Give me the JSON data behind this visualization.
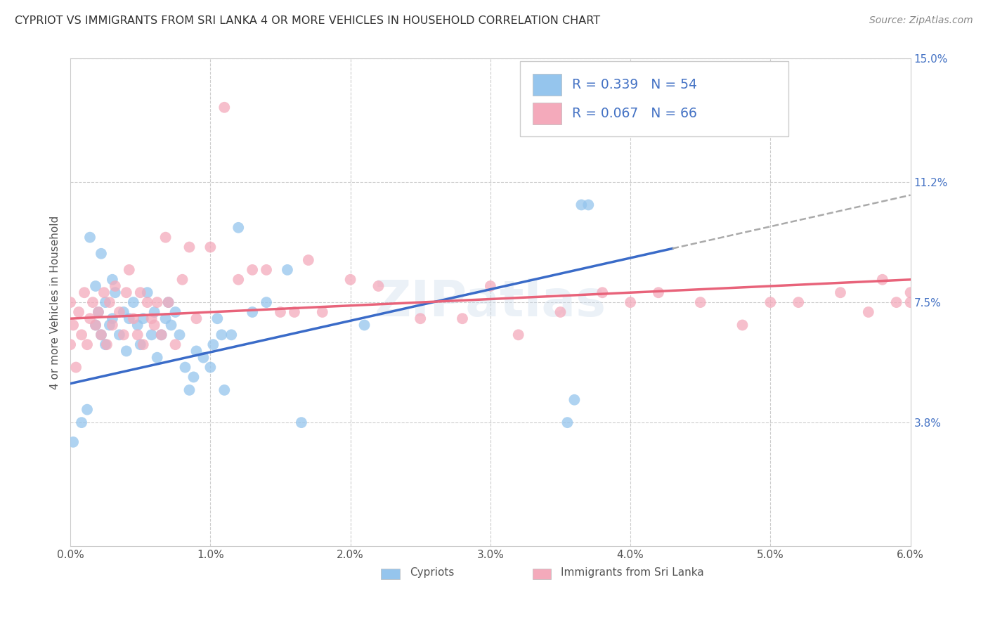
{
  "title": "CYPRIOT VS IMMIGRANTS FROM SRI LANKA 4 OR MORE VEHICLES IN HOUSEHOLD CORRELATION CHART",
  "source": "Source: ZipAtlas.com",
  "xlabel_ticks": [
    "0.0%",
    "1.0%",
    "2.0%",
    "3.0%",
    "4.0%",
    "5.0%",
    "6.0%"
  ],
  "xlabel_vals": [
    0.0,
    1.0,
    2.0,
    3.0,
    4.0,
    5.0,
    6.0
  ],
  "ylabel": "4 or more Vehicles in Household",
  "ylabel_right_ticks": [
    "3.8%",
    "7.5%",
    "11.2%",
    "15.0%"
  ],
  "ylabel_right_vals": [
    3.8,
    7.5,
    11.2,
    15.0
  ],
  "xmin": 0.0,
  "xmax": 6.0,
  "ymin": 0.0,
  "ymax": 15.0,
  "color_blue": "#95C5ED",
  "color_pink": "#F4AABB",
  "color_blue_line": "#3A6BC8",
  "color_pink_line": "#E8637A",
  "color_blue_text": "#4472C4",
  "color_title": "#333333",
  "color_source": "#888888",
  "color_grid": "#CCCCCC",
  "color_right_labels": "#4472C4",
  "watermark": "ZIPatlas",
  "blue_scatter_x": [
    0.02,
    0.08,
    0.12,
    0.14,
    0.18,
    0.18,
    0.2,
    0.22,
    0.22,
    0.25,
    0.25,
    0.28,
    0.3,
    0.3,
    0.32,
    0.35,
    0.38,
    0.4,
    0.42,
    0.45,
    0.48,
    0.5,
    0.52,
    0.55,
    0.58,
    0.6,
    0.62,
    0.65,
    0.68,
    0.7,
    0.72,
    0.75,
    0.78,
    0.82,
    0.85,
    0.88,
    0.9,
    0.95,
    1.0,
    1.02,
    1.05,
    1.08,
    1.1,
    1.15,
    1.2,
    1.3,
    1.4,
    1.55,
    1.65,
    2.1,
    3.55,
    3.6,
    3.65,
    3.7
  ],
  "blue_scatter_y": [
    3.2,
    3.8,
    4.2,
    9.5,
    6.8,
    8.0,
    7.2,
    6.5,
    9.0,
    6.2,
    7.5,
    6.8,
    7.0,
    8.2,
    7.8,
    6.5,
    7.2,
    6.0,
    7.0,
    7.5,
    6.8,
    6.2,
    7.0,
    7.8,
    6.5,
    7.2,
    5.8,
    6.5,
    7.0,
    7.5,
    6.8,
    7.2,
    6.5,
    5.5,
    4.8,
    5.2,
    6.0,
    5.8,
    5.5,
    6.2,
    7.0,
    6.5,
    4.8,
    6.5,
    9.8,
    7.2,
    7.5,
    8.5,
    3.8,
    6.8,
    3.8,
    4.5,
    10.5,
    10.5
  ],
  "pink_scatter_x": [
    0.0,
    0.0,
    0.02,
    0.04,
    0.06,
    0.08,
    0.1,
    0.12,
    0.14,
    0.16,
    0.18,
    0.2,
    0.22,
    0.24,
    0.26,
    0.28,
    0.3,
    0.32,
    0.35,
    0.38,
    0.4,
    0.42,
    0.45,
    0.48,
    0.5,
    0.52,
    0.55,
    0.58,
    0.6,
    0.62,
    0.65,
    0.68,
    0.7,
    0.75,
    0.8,
    0.85,
    0.9,
    1.0,
    1.1,
    1.2,
    1.3,
    1.4,
    1.5,
    1.6,
    1.7,
    1.8,
    2.0,
    2.2,
    2.5,
    2.8,
    3.0,
    3.2,
    3.5,
    3.8,
    4.0,
    4.2,
    4.5,
    4.8,
    5.0,
    5.2,
    5.5,
    5.7,
    5.8,
    5.9,
    6.0,
    6.0
  ],
  "pink_scatter_y": [
    6.2,
    7.5,
    6.8,
    5.5,
    7.2,
    6.5,
    7.8,
    6.2,
    7.0,
    7.5,
    6.8,
    7.2,
    6.5,
    7.8,
    6.2,
    7.5,
    6.8,
    8.0,
    7.2,
    6.5,
    7.8,
    8.5,
    7.0,
    6.5,
    7.8,
    6.2,
    7.5,
    7.0,
    6.8,
    7.5,
    6.5,
    9.5,
    7.5,
    6.2,
    8.2,
    9.2,
    7.0,
    9.2,
    13.5,
    8.2,
    8.5,
    8.5,
    7.2,
    7.2,
    8.8,
    7.2,
    8.2,
    8.0,
    7.0,
    7.0,
    8.0,
    6.5,
    7.2,
    7.8,
    7.5,
    7.8,
    7.5,
    6.8,
    7.5,
    7.5,
    7.8,
    7.2,
    8.2,
    7.5,
    7.8,
    7.5
  ],
  "blue_trend_x0": 0.0,
  "blue_trend_x1": 6.0,
  "blue_trend_y0": 5.0,
  "blue_trend_y1": 10.8,
  "blue_solid_end": 4.3,
  "pink_trend_x0": 0.0,
  "pink_trend_x1": 6.0,
  "pink_trend_y0": 7.0,
  "pink_trend_y1": 8.2
}
